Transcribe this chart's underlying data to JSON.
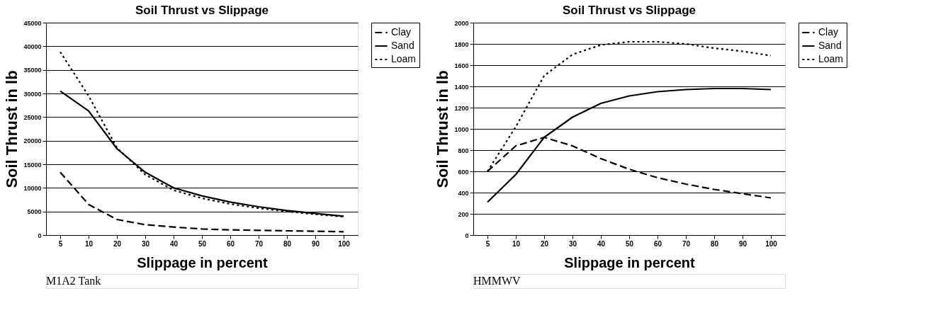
{
  "chart_data": [
    {
      "type": "line",
      "title": "Soil Thrust vs Slippage",
      "xlabel": "Slippage in percent",
      "ylabel": "Soil Thrust in lb",
      "categories": [
        "5",
        "10",
        "20",
        "30",
        "40",
        "50",
        "60",
        "70",
        "80",
        "90",
        "100"
      ],
      "ylim": [
        0,
        45000
      ],
      "yticks": [
        0,
        5000,
        10000,
        15000,
        20000,
        25000,
        30000,
        35000,
        40000,
        45000
      ],
      "grid": "y",
      "legend": "right",
      "marker": "none",
      "annotations": [
        "M1A2 Tank"
      ],
      "series": [
        {
          "name": "Clay",
          "color": "#000000",
          "line_style": "dashed",
          "values": [
            13300,
            6500,
            3300,
            2200,
            1700,
            1300,
            1100,
            1000,
            900,
            800,
            700
          ]
        },
        {
          "name": "Sand",
          "color": "#000000",
          "line_style": "solid",
          "values": [
            30500,
            26300,
            18300,
            13300,
            10000,
            8300,
            7000,
            6000,
            5200,
            4600,
            4000
          ]
        },
        {
          "name": "Loam",
          "color": "#000000",
          "line_style": "dotted",
          "values": [
            38800,
            29500,
            18500,
            12800,
            9500,
            7800,
            6600,
            5700,
            5000,
            4400,
            3900
          ]
        }
      ]
    },
    {
      "type": "line",
      "title": "Soil Thrust vs Slippage",
      "xlabel": "Slippage in percent",
      "ylabel": "Soil Thrust in lb",
      "categories": [
        "5",
        "10",
        "20",
        "30",
        "40",
        "50",
        "60",
        "70",
        "80",
        "90",
        "100"
      ],
      "ylim": [
        0,
        2000
      ],
      "yticks": [
        0,
        200,
        400,
        600,
        800,
        1000,
        1200,
        1400,
        1600,
        1800,
        2000
      ],
      "grid": "y",
      "legend": "right",
      "marker": "none",
      "annotations": [
        "HMMWV"
      ],
      "series": [
        {
          "name": "Clay",
          "color": "#000000",
          "line_style": "dashed",
          "values": [
            600,
            840,
            920,
            840,
            720,
            620,
            540,
            480,
            430,
            390,
            350
          ]
        },
        {
          "name": "Sand",
          "color": "#000000",
          "line_style": "solid",
          "values": [
            310,
            570,
            920,
            1110,
            1240,
            1310,
            1350,
            1370,
            1380,
            1380,
            1370
          ]
        },
        {
          "name": "Loam",
          "color": "#000000",
          "line_style": "dotted",
          "values": [
            600,
            1020,
            1500,
            1700,
            1790,
            1820,
            1820,
            1800,
            1760,
            1730,
            1690
          ]
        }
      ]
    }
  ]
}
